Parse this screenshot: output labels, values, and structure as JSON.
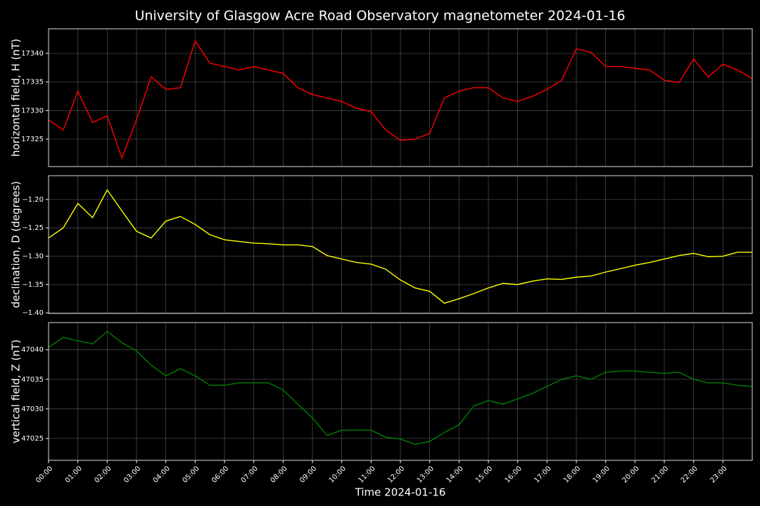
{
  "chart_data": [
    {
      "type": "line",
      "title": "University of Glasgow Acre Road Observatory magnetometer 2024-01-16",
      "ylabel": "horizontal field, H (nT)",
      "x": [
        "00:00",
        "00:30",
        "01:00",
        "01:30",
        "02:00",
        "02:30",
        "03:00",
        "03:30",
        "04:00",
        "04:30",
        "05:00",
        "05:30",
        "06:00",
        "06:30",
        "07:00",
        "07:30",
        "08:00",
        "08:30",
        "09:00",
        "09:30",
        "10:00",
        "10:30",
        "11:00",
        "11:30",
        "12:00",
        "12:30",
        "13:00",
        "13:30",
        "14:00",
        "14:30",
        "15:00",
        "15:30",
        "16:00",
        "16:30",
        "17:00",
        "17:30",
        "18:00",
        "18:30",
        "19:00",
        "19:30",
        "20:00",
        "20:30",
        "21:00",
        "21:30",
        "22:00",
        "22:30",
        "23:00",
        "23:30",
        "23:59"
      ],
      "series": [
        {
          "name": "H",
          "color": "#ff0000",
          "values": [
            17328.4,
            17326.6,
            17333.4,
            17327.9,
            17329.1,
            17321.7,
            17328.4,
            17335.9,
            17333.7,
            17334,
            17342.2,
            17338.3,
            17337.7,
            17337.1,
            17337.7,
            17337.1,
            17336.5,
            17334,
            17332.8,
            17332.2,
            17331.6,
            17330.4,
            17329.8,
            17326.6,
            17324.8,
            17325,
            17326,
            17332.2,
            17333.4,
            17334,
            17334,
            17332.2,
            17331.6,
            17332.5,
            17333.7,
            17335.3,
            17340.8,
            17340.2,
            17337.7,
            17337.7,
            17337.4,
            17337.1,
            17335.3,
            17334.9,
            17339,
            17335.9,
            17338.1,
            17337.1,
            17335.6
          ]
        }
      ],
      "xlim": [
        "00:00",
        "24:00"
      ],
      "ylim": [
        17320.2,
        17344.3
      ],
      "yticks": [
        17325,
        17330,
        17335,
        17340
      ],
      "grid": true
    },
    {
      "type": "line",
      "ylabel": "declination, D (degrees)",
      "x": [
        "00:00",
        "00:30",
        "01:00",
        "01:30",
        "02:00",
        "02:30",
        "03:00",
        "03:30",
        "04:00",
        "04:30",
        "05:00",
        "05:30",
        "06:00",
        "06:30",
        "07:00",
        "07:30",
        "08:00",
        "08:30",
        "09:00",
        "09:30",
        "10:00",
        "10:30",
        "11:00",
        "11:30",
        "12:00",
        "12:30",
        "13:00",
        "13:30",
        "14:00",
        "14:30",
        "15:00",
        "15:30",
        "16:00",
        "16:30",
        "17:00",
        "17:30",
        "18:00",
        "18:30",
        "19:00",
        "19:30",
        "20:00",
        "20:30",
        "21:00",
        "21:30",
        "22:00",
        "22:30",
        "23:00",
        "23:30",
        "23:59"
      ],
      "series": [
        {
          "name": "D",
          "color": "#ffff00",
          "values": [
            -1.268,
            -1.25,
            -1.207,
            -1.232,
            -1.183,
            -1.22,
            -1.256,
            -1.268,
            -1.238,
            -1.23,
            -1.244,
            -1.262,
            -1.271,
            -1.274,
            -1.277,
            -1.278,
            -1.28,
            -1.28,
            -1.283,
            -1.299,
            -1.305,
            -1.311,
            -1.314,
            -1.323,
            -1.342,
            -1.356,
            -1.362,
            -1.383,
            -1.375,
            -1.366,
            -1.356,
            -1.348,
            -1.35,
            -1.344,
            -1.34,
            -1.341,
            -1.337,
            -1.335,
            -1.328,
            -1.322,
            -1.316,
            -1.311,
            -1.305,
            -1.299,
            -1.295,
            -1.301,
            -1.3,
            -1.293,
            -1.293
          ]
        }
      ],
      "xlim": [
        "00:00",
        "24:00"
      ],
      "ylim": [
        -1.401,
        -1.158
      ],
      "yticks": [
        {
          "value": -1.4,
          "label": "−1.40"
        },
        {
          "value": -1.35,
          "label": "−1.35"
        },
        {
          "value": -1.3,
          "label": "−1.30"
        },
        {
          "value": -1.25,
          "label": "−1.25"
        },
        {
          "value": -1.2,
          "label": "−1.20"
        }
      ],
      "grid": true
    },
    {
      "type": "line",
      "ylabel": "vertical field, Z (nT)",
      "xlabel": "Time 2024-01-16",
      "x": [
        "00:00",
        "00:30",
        "01:00",
        "01:30",
        "02:00",
        "02:30",
        "03:00",
        "03:30",
        "04:00",
        "04:30",
        "05:00",
        "05:30",
        "06:00",
        "06:30",
        "07:00",
        "07:30",
        "08:00",
        "08:30",
        "09:00",
        "09:30",
        "10:00",
        "10:30",
        "11:00",
        "11:30",
        "12:00",
        "12:30",
        "13:00",
        "13:30",
        "14:00",
        "14:30",
        "15:00",
        "15:30",
        "16:00",
        "16:30",
        "17:00",
        "17:30",
        "18:00",
        "18:30",
        "19:00",
        "19:30",
        "20:00",
        "20:30",
        "21:00",
        "21:30",
        "22:00",
        "22:30",
        "23:00",
        "23:30",
        "23:59"
      ],
      "series": [
        {
          "name": "Z",
          "color": "#008000",
          "values": [
            47040.4,
            47042.1,
            47041.5,
            47041,
            47043.1,
            47041.2,
            47039.8,
            47037.4,
            47035.6,
            47036.8,
            47035.6,
            47034,
            47034,
            47034.4,
            47034.4,
            47034.4,
            47033.2,
            47030.8,
            47028.5,
            47025.5,
            47026.4,
            47026.4,
            47026.4,
            47025.2,
            47024.9,
            47024,
            47024.5,
            47026,
            47027.3,
            47030.5,
            47031.4,
            47030.8,
            47031.7,
            47032.6,
            47033.8,
            47035,
            47035.6,
            47035,
            47036.2,
            47036.4,
            47036.4,
            47036.2,
            47036,
            47036.2,
            47035,
            47034.4,
            47034.4,
            47034,
            47033.8
          ]
        }
      ],
      "xlim": [
        "00:00",
        "24:00"
      ],
      "ylim": [
        47021.3,
        47044.6
      ],
      "yticks": [
        47025,
        47030,
        47035,
        47040
      ],
      "xticks": [
        "00:00",
        "01:00",
        "02:00",
        "03:00",
        "04:00",
        "05:00",
        "06:00",
        "07:00",
        "08:00",
        "09:00",
        "10:00",
        "11:00",
        "12:00",
        "13:00",
        "14:00",
        "15:00",
        "16:00",
        "17:00",
        "18:00",
        "19:00",
        "20:00",
        "21:00",
        "22:00",
        "23:00"
      ],
      "grid": true
    }
  ]
}
